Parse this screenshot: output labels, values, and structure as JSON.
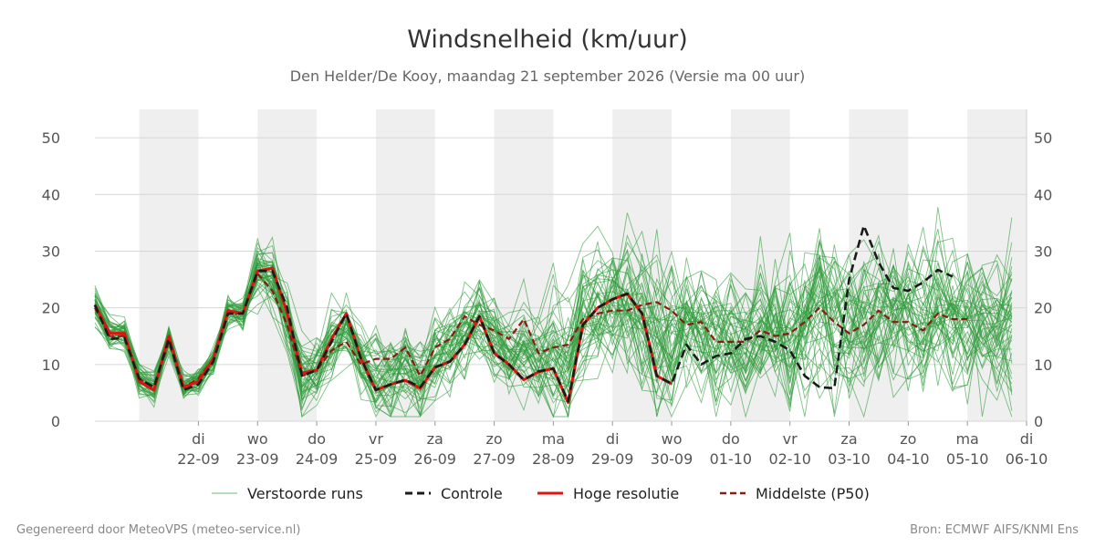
{
  "chart_data": {
    "type": "line",
    "title": "Windsnelheid (km/uur)",
    "subtitle": "Den Helder/De Kooy, maandag 21 september 2026 (Versie ma 00 uur)",
    "ylim": [
      0,
      55
    ],
    "yticks": [
      0,
      10,
      20,
      30,
      40,
      50
    ],
    "x_days": [
      {
        "day": "di",
        "date": "22-09",
        "x": 1
      },
      {
        "day": "wo",
        "date": "23-09",
        "x": 2
      },
      {
        "day": "do",
        "date": "24-09",
        "x": 3
      },
      {
        "day": "vr",
        "date": "25-09",
        "x": 4
      },
      {
        "day": "za",
        "date": "26-09",
        "x": 5
      },
      {
        "day": "zo",
        "date": "27-09",
        "x": 6
      },
      {
        "day": "ma",
        "date": "28-09",
        "x": 7
      },
      {
        "day": "di",
        "date": "29-09",
        "x": 8
      },
      {
        "day": "wo",
        "date": "30-09",
        "x": 9
      },
      {
        "day": "do",
        "date": "01-10",
        "x": 10
      },
      {
        "day": "vr",
        "date": "02-10",
        "x": 11
      },
      {
        "day": "za",
        "date": "03-10",
        "x": 12
      },
      {
        "day": "zo",
        "date": "04-10",
        "x": 13
      },
      {
        "day": "ma",
        "date": "05-10",
        "x": 14
      },
      {
        "day": "di",
        "date": "06-10",
        "x": 15
      }
    ],
    "xlim": [
      -0.75,
      15
    ],
    "grid": true,
    "legend": "bottom",
    "series": [
      {
        "name": "Hoge resolutie",
        "color": "#e0140f",
        "style": "solid",
        "points": [
          [
            -0.75,
            20.5
          ],
          [
            -0.5,
            15.5
          ],
          [
            -0.25,
            15.5
          ],
          [
            0,
            7
          ],
          [
            0.25,
            5.5
          ],
          [
            0.5,
            15
          ],
          [
            0.75,
            6
          ],
          [
            1,
            7
          ],
          [
            1.25,
            11
          ],
          [
            1.5,
            19.5
          ],
          [
            1.75,
            19
          ],
          [
            2,
            26.5
          ],
          [
            2.25,
            27
          ],
          [
            2.5,
            19
          ],
          [
            2.75,
            8.5
          ],
          [
            3,
            9
          ],
          [
            3.25,
            14.5
          ],
          [
            3.5,
            19
          ],
          [
            3.75,
            11
          ],
          [
            4,
            5.5
          ],
          [
            4.25,
            6.5
          ],
          [
            4.5,
            7.2
          ],
          [
            4.75,
            5.8
          ],
          [
            5,
            9.5
          ],
          [
            5.25,
            10.5
          ],
          [
            5.5,
            13.5
          ],
          [
            5.75,
            18.5
          ],
          [
            6,
            12
          ],
          [
            6.25,
            10
          ],
          [
            6.5,
            7.3
          ],
          [
            6.75,
            8.7
          ],
          [
            7,
            9.3
          ],
          [
            7.25,
            3.3
          ],
          [
            7.5,
            17
          ],
          [
            7.75,
            20
          ],
          [
            8,
            21.5
          ],
          [
            8.25,
            22.5
          ],
          [
            8.5,
            19
          ],
          [
            8.75,
            8
          ],
          [
            9,
            6.6
          ]
        ]
      },
      {
        "name": "Controle",
        "color": "#1a1a1a",
        "style": "dashed",
        "points": [
          [
            -0.75,
            20.5
          ],
          [
            -0.5,
            14.5
          ],
          [
            -0.25,
            14.7
          ],
          [
            0,
            7.5
          ],
          [
            0.25,
            6
          ],
          [
            0.5,
            14.5
          ],
          [
            0.75,
            5.5
          ],
          [
            1,
            6.5
          ],
          [
            1.25,
            10.5
          ],
          [
            1.5,
            19
          ],
          [
            1.75,
            19
          ],
          [
            2,
            26.5
          ],
          [
            2.25,
            26.5
          ],
          [
            2.5,
            20
          ],
          [
            2.75,
            8
          ],
          [
            3,
            9
          ],
          [
            3.25,
            14
          ],
          [
            3.5,
            19
          ],
          [
            3.75,
            11
          ],
          [
            4,
            5.5
          ],
          [
            4.25,
            6.5
          ],
          [
            4.5,
            7.3
          ],
          [
            4.75,
            6
          ],
          [
            5,
            9.5
          ],
          [
            5.25,
            10.5
          ],
          [
            5.5,
            13.5
          ],
          [
            5.75,
            18.5
          ],
          [
            6,
            12
          ],
          [
            6.25,
            10
          ],
          [
            6.5,
            7.3
          ],
          [
            6.75,
            8.8
          ],
          [
            7,
            9.3
          ],
          [
            7.25,
            3.5
          ],
          [
            7.5,
            17
          ],
          [
            7.75,
            20
          ],
          [
            8,
            21.5
          ],
          [
            8.25,
            22.5
          ],
          [
            8.5,
            19
          ],
          [
            8.75,
            8
          ],
          [
            9,
            6.6
          ],
          [
            9.25,
            13.5
          ],
          [
            9.5,
            10
          ],
          [
            9.75,
            11.5
          ],
          [
            10,
            12
          ],
          [
            10.25,
            14.5
          ],
          [
            10.5,
            15
          ],
          [
            10.75,
            14
          ],
          [
            11,
            12.5
          ],
          [
            11.25,
            8
          ],
          [
            11.5,
            6
          ],
          [
            11.75,
            5.8
          ],
          [
            12,
            25
          ],
          [
            12.25,
            34.5
          ],
          [
            12.5,
            28
          ],
          [
            12.75,
            23.5
          ],
          [
            13,
            23
          ],
          [
            13.25,
            24.5
          ],
          [
            13.5,
            26.7
          ],
          [
            13.75,
            25.5
          ]
        ]
      },
      {
        "name": "Middelste (P50)",
        "color": "#8b1a14",
        "style": "dashed",
        "points": [
          [
            -0.75,
            20
          ],
          [
            -0.5,
            15
          ],
          [
            -0.25,
            15
          ],
          [
            0,
            7.5
          ],
          [
            0.25,
            6
          ],
          [
            0.5,
            14
          ],
          [
            0.75,
            6
          ],
          [
            1,
            7.5
          ],
          [
            1.25,
            11
          ],
          [
            1.5,
            19
          ],
          [
            1.75,
            19
          ],
          [
            2,
            26
          ],
          [
            2.25,
            23
          ],
          [
            2.5,
            17
          ],
          [
            2.75,
            8
          ],
          [
            3,
            9
          ],
          [
            3.25,
            12.5
          ],
          [
            3.5,
            14
          ],
          [
            3.75,
            10
          ],
          [
            4,
            11
          ],
          [
            4.25,
            11
          ],
          [
            4.5,
            13
          ],
          [
            4.75,
            8
          ],
          [
            5,
            13
          ],
          [
            5.25,
            14.5
          ],
          [
            5.5,
            18.5
          ],
          [
            5.75,
            17
          ],
          [
            6,
            16
          ],
          [
            6.25,
            14.5
          ],
          [
            6.5,
            18
          ],
          [
            6.75,
            12
          ],
          [
            7,
            13
          ],
          [
            7.25,
            13.5
          ],
          [
            7.5,
            18
          ],
          [
            7.75,
            19
          ],
          [
            8,
            19.5
          ],
          [
            8.25,
            19.5
          ],
          [
            8.5,
            20.5
          ],
          [
            8.75,
            21
          ],
          [
            9,
            19.5
          ],
          [
            9.25,
            17
          ],
          [
            9.5,
            17.5
          ],
          [
            9.75,
            14
          ],
          [
            10,
            14
          ],
          [
            10.25,
            14
          ],
          [
            10.5,
            16
          ],
          [
            10.75,
            15
          ],
          [
            11,
            15.5
          ],
          [
            11.25,
            17.5
          ],
          [
            11.5,
            20
          ],
          [
            11.75,
            17.5
          ],
          [
            12,
            15.5
          ],
          [
            12.25,
            17
          ],
          [
            12.5,
            19.5
          ],
          [
            12.75,
            17.5
          ],
          [
            13,
            17.5
          ],
          [
            13.25,
            16
          ],
          [
            13.5,
            19
          ],
          [
            13.75,
            18
          ],
          [
            14,
            18
          ]
        ]
      }
    ],
    "ensemble": {
      "name": "Verstoorde runs",
      "color": "#2e9b3a",
      "count": 50,
      "x_start": -0.75,
      "x_step": 0.25,
      "n_points": 63,
      "spread_growth": "spread small until 25-09, grows strongly after 28-09; values mostly 2–51 km/uur"
    },
    "legend_entries": [
      "Verstoorde runs",
      "Controle",
      "Hoge resolutie",
      "Middelste (P50)"
    ]
  },
  "footer": {
    "left": "Gegenereerd door MeteoVPS (meteo-service.nl)",
    "right": "Bron: ECMWF AIFS/KNMI Ens"
  }
}
